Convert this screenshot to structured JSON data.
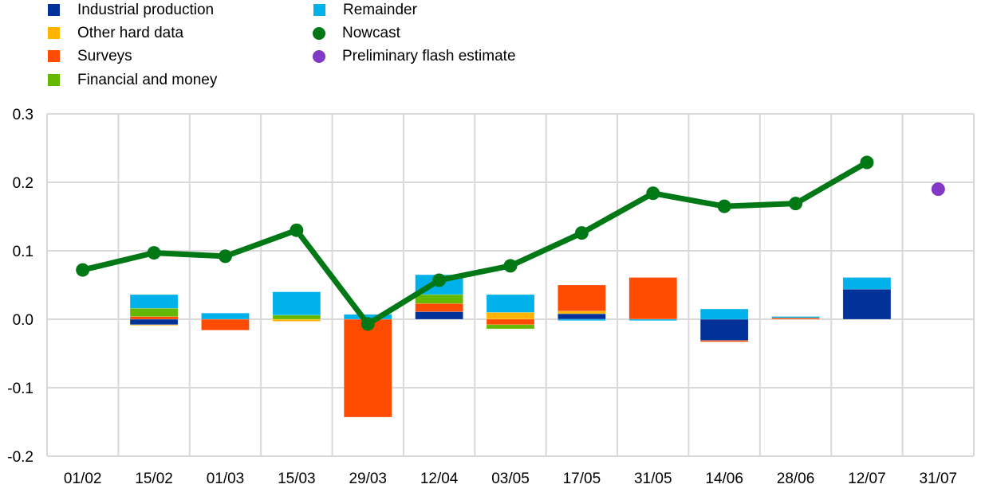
{
  "chart_data": {
    "type": "bar",
    "title": "",
    "xlabel": "",
    "ylabel": "",
    "ylim": [
      -0.2,
      0.3
    ],
    "yticks": [
      "0.3",
      "0.2",
      "0.1",
      "0.0",
      "-0.1",
      "-0.2"
    ],
    "ytick_values": [
      0.3,
      0.2,
      0.1,
      0.0,
      -0.1,
      -0.2
    ],
    "grid": true,
    "legend_position": "top-left",
    "categories": [
      "01/02",
      "15/02",
      "01/03",
      "15/03",
      "29/03",
      "12/04",
      "03/05",
      "17/05",
      "31/05",
      "14/06",
      "28/06",
      "12/07",
      "31/07"
    ],
    "series": [
      {
        "name": "Industrial production",
        "type": "stacked-bar",
        "color": "#003299",
        "values": [
          0,
          -0.008,
          0,
          0,
          0,
          0.011,
          0,
          0.008,
          0,
          -0.031,
          0,
          0.044,
          0
        ]
      },
      {
        "name": "Other hard data",
        "type": "stacked-bar",
        "color": "#FFB400",
        "values": [
          0,
          -0.001,
          0,
          -0.003,
          0,
          0,
          0.01,
          0.004,
          0,
          0,
          0,
          0,
          0
        ]
      },
      {
        "name": "Surveys",
        "type": "stacked-bar",
        "color": "#FF4B00",
        "values": [
          0,
          0.004,
          -0.016,
          0,
          -0.143,
          0.012,
          -0.008,
          0.038,
          0.061,
          -0.002,
          0.002,
          0,
          0
        ]
      },
      {
        "name": "Financial and money",
        "type": "stacked-bar",
        "color": "#65B800",
        "values": [
          0,
          0.012,
          0,
          0.006,
          0,
          0.013,
          -0.006,
          0,
          0,
          0,
          0,
          0,
          0
        ]
      },
      {
        "name": "Remainder",
        "type": "stacked-bar",
        "color": "#00B1EA",
        "values": [
          0,
          0.02,
          0.009,
          0.034,
          0.007,
          0.029,
          0.026,
          -0.002,
          -0.002,
          0.015,
          0.002,
          0.017,
          0
        ]
      },
      {
        "name": "Nowcast",
        "type": "line",
        "color": "#007816",
        "values": [
          0.072,
          0.097,
          0.092,
          0.13,
          -0.007,
          0.057,
          0.078,
          0.126,
          0.184,
          0.165,
          0.169,
          0.229,
          null
        ]
      },
      {
        "name": "Preliminary flash estimate",
        "type": "scatter",
        "color": "#8139C6",
        "values": [
          null,
          null,
          null,
          null,
          null,
          null,
          null,
          null,
          null,
          null,
          null,
          null,
          0.19
        ]
      }
    ]
  },
  "colors": {
    "grid": "#D9D9D9",
    "text": "#000000"
  }
}
